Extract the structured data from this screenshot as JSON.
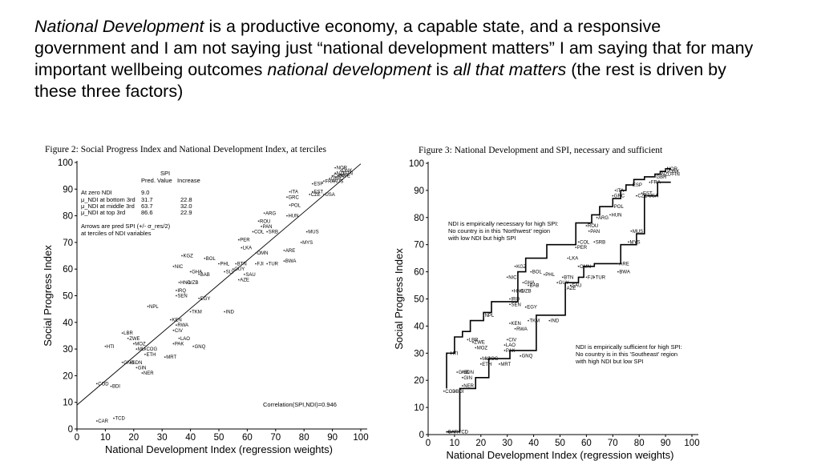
{
  "heading": {
    "t1": "National Development",
    "t2": " is a productive economy, a capable state, and a responsive government and I am not saying just “national development matters” I am saying that for many important wellbeing outcomes ",
    "t3": "national development",
    "t4": " is ",
    "t5": "all that matters",
    "t6": " (the rest is driven by these three factors)"
  },
  "chart_data": [
    {
      "type": "scatter",
      "title": "Figure 2: Social Progress Index and National Development Index, at terciles",
      "xlabel": "National Development Index (regression weights)",
      "ylabel": "Social Progress Index",
      "xlim": [
        0,
        100
      ],
      "ylim": [
        0,
        100
      ],
      "xticks": [
        "0",
        "10",
        "20",
        "30",
        "40",
        "50",
        "60",
        "70",
        "80",
        "90",
        "100"
      ],
      "yticks": [
        "0",
        "10",
        "20",
        "30",
        "40",
        "50",
        "60",
        "70",
        "80",
        "90",
        "100"
      ],
      "table": {
        "col_head1": "SPI",
        "col_head2": "Pred. Value",
        "col_head3": "Increase",
        "rows": [
          {
            "label": "At zero NDI",
            "pred": "9.0",
            "inc": ""
          },
          {
            "label": "μ_NDI at bottom 3rd",
            "pred": "31.7",
            "inc": "22.8"
          },
          {
            "label": "μ_NDI at middle 3rd",
            "pred": "63.7",
            "inc": "32.0"
          },
          {
            "label": "μ_NDI at top 3rd",
            "pred": "86.6",
            "inc": "22.9"
          }
        ]
      },
      "arrow_note_1": "Arrows are pred SPI (+/- σ_res/2)",
      "arrow_note_2": "at terciles of NDI variables",
      "correlation": "Correlation(SPI,NDI)=0.946",
      "fit_line": {
        "x": [
          0,
          100
        ],
        "y": [
          9.0,
          99.5
        ]
      },
      "points": [
        {
          "label": "CAR",
          "x": 7,
          "y": 3
        },
        {
          "label": "TCD",
          "x": 13,
          "y": 4
        },
        {
          "label": "COD",
          "x": 7,
          "y": 17
        },
        {
          "label": "BDI",
          "x": 12,
          "y": 16
        },
        {
          "label": "NER",
          "x": 23,
          "y": 21
        },
        {
          "label": "GIN",
          "x": 21,
          "y": 23
        },
        {
          "label": "GNB",
          "x": 16,
          "y": 25
        },
        {
          "label": "SDN",
          "x": 19,
          "y": 25
        },
        {
          "label": "HTI",
          "x": 10,
          "y": 31
        },
        {
          "label": "LBR",
          "x": 16,
          "y": 36
        },
        {
          "label": "ZWE",
          "x": 18,
          "y": 34
        },
        {
          "label": "MOZ",
          "x": 20,
          "y": 32
        },
        {
          "label": "MLI",
          "x": 21,
          "y": 30
        },
        {
          "label": "COG",
          "x": 24,
          "y": 30
        },
        {
          "label": "ETH",
          "x": 24,
          "y": 28
        },
        {
          "label": "MRT",
          "x": 31,
          "y": 27
        },
        {
          "label": "CIV",
          "x": 34,
          "y": 37
        },
        {
          "label": "RWA",
          "x": 35,
          "y": 39
        },
        {
          "label": "LAO",
          "x": 36,
          "y": 34
        },
        {
          "label": "PAK",
          "x": 34,
          "y": 32
        },
        {
          "label": "GNQ",
          "x": 41,
          "y": 31
        },
        {
          "label": "NPL",
          "x": 25,
          "y": 46
        },
        {
          "label": "KEN",
          "x": 33,
          "y": 41
        },
        {
          "label": "TKM",
          "x": 40,
          "y": 44
        },
        {
          "label": "IND",
          "x": 52,
          "y": 44
        },
        {
          "label": "EGY",
          "x": 43,
          "y": 49
        },
        {
          "label": "SEN",
          "x": 35,
          "y": 50
        },
        {
          "label": "IRQ",
          "x": 35,
          "y": 52
        },
        {
          "label": "HND",
          "x": 36,
          "y": 55
        },
        {
          "label": "UZB",
          "x": 39,
          "y": 55
        },
        {
          "label": "GHA",
          "x": 40,
          "y": 59
        },
        {
          "label": "BAB",
          "x": 43,
          "y": 58
        },
        {
          "label": "NIC",
          "x": 34,
          "y": 61
        },
        {
          "label": "KGZ",
          "x": 37,
          "y": 65
        },
        {
          "label": "BOL",
          "x": 45,
          "y": 64
        },
        {
          "label": "PHL",
          "x": 50,
          "y": 62
        },
        {
          "label": "BTN",
          "x": 56,
          "y": 62
        },
        {
          "label": "GUY",
          "x": 55,
          "y": 60
        },
        {
          "label": "SLV",
          "x": 52,
          "y": 59
        },
        {
          "label": "SAU",
          "x": 59,
          "y": 58
        },
        {
          "label": "AZE",
          "x": 57,
          "y": 56
        },
        {
          "label": "FJI",
          "x": 63,
          "y": 62
        },
        {
          "label": "TUR",
          "x": 67,
          "y": 62
        },
        {
          "label": "BWA",
          "x": 73,
          "y": 63
        },
        {
          "label": "ARE",
          "x": 73,
          "y": 67
        },
        {
          "label": "OMN",
          "x": 63,
          "y": 66
        },
        {
          "label": "LKA",
          "x": 58,
          "y": 68
        },
        {
          "label": "PER",
          "x": 57,
          "y": 71
        },
        {
          "label": "COL",
          "x": 62,
          "y": 74
        },
        {
          "label": "SRB",
          "x": 67,
          "y": 74
        },
        {
          "label": "PAN",
          "x": 65,
          "y": 76
        },
        {
          "label": "ROU",
          "x": 64,
          "y": 78
        },
        {
          "label": "ARG",
          "x": 66,
          "y": 81
        },
        {
          "label": "MYS",
          "x": 79,
          "y": 70
        },
        {
          "label": "MUS",
          "x": 81,
          "y": 74
        },
        {
          "label": "HUN",
          "x": 74,
          "y": 80
        },
        {
          "label": "POL",
          "x": 75,
          "y": 84
        },
        {
          "label": "GRC",
          "x": 74,
          "y": 87
        },
        {
          "label": "ITA",
          "x": 75,
          "y": 89
        },
        {
          "label": "CZE",
          "x": 82,
          "y": 88
        },
        {
          "label": "EST",
          "x": 83,
          "y": 89
        },
        {
          "label": "USA",
          "x": 87,
          "y": 88
        },
        {
          "label": "ESP",
          "x": 83,
          "y": 92
        },
        {
          "label": "FRA",
          "x": 87,
          "y": 93
        },
        {
          "label": "GBR",
          "x": 89,
          "y": 94
        },
        {
          "label": "NZL",
          "x": 91,
          "y": 96
        },
        {
          "label": "NOR",
          "x": 91,
          "y": 98
        },
        {
          "label": "DNK",
          "x": 93,
          "y": 97
        },
        {
          "label": "FIN",
          "x": 94,
          "y": 96
        },
        {
          "label": "SWE",
          "x": 92,
          "y": 95
        },
        {
          "label": "CAN",
          "x": 90,
          "y": 95
        },
        {
          "label": "AUS",
          "x": 90,
          "y": 93
        }
      ]
    },
    {
      "type": "line",
      "title": "Figure 3: National Development and SPI, necessary and sufficient",
      "xlabel": "National Development Index (regression weights)",
      "ylabel": "Social Progress Index",
      "xlim": [
        0,
        100
      ],
      "ylim": [
        0,
        100
      ],
      "xticks": [
        "0",
        "10",
        "20",
        "30",
        "40",
        "50",
        "60",
        "70",
        "80",
        "90",
        "100"
      ],
      "yticks": [
        "0",
        "10",
        "20",
        "30",
        "40",
        "50",
        "60",
        "70",
        "80",
        "90",
        "100"
      ],
      "note_necessary": [
        "NDI is empirically necessary for high SPI:",
        "No country is in this 'Northwest' region",
        "with low NDI but high SPI"
      ],
      "note_sufficient": [
        "NDI is empirically sufficient for high SPI:",
        "No country is in this 'Southeast' region",
        "with high NDI but low SPI"
      ],
      "upper_envelope": {
        "x": [
          7,
          7,
          10,
          10,
          13,
          13,
          16,
          16,
          21,
          21,
          24,
          24,
          34,
          34,
          37,
          37,
          45,
          45,
          56,
          56,
          62,
          62,
          65,
          65,
          70,
          70,
          73,
          73,
          75,
          75,
          78,
          78,
          82,
          82,
          86,
          86,
          88,
          88,
          90,
          90,
          92
        ],
        "y": [
          17,
          30,
          30,
          36,
          36,
          38,
          38,
          42,
          42,
          45,
          45,
          49,
          49,
          60,
          60,
          65,
          65,
          70,
          70,
          78,
          78,
          81,
          81,
          84,
          84,
          87,
          87,
          90,
          90,
          92,
          92,
          94,
          94,
          95,
          95,
          96,
          96,
          97,
          97,
          98,
          98
        ]
      },
      "lower_envelope": {
        "x": [
          7,
          12,
          12,
          18,
          18,
          23,
          23,
          31,
          31,
          41,
          41,
          52,
          52,
          57,
          57,
          59,
          59,
          63,
          63,
          73,
          73,
          79,
          79,
          82,
          82,
          87,
          87,
          92
        ],
        "y": [
          1,
          1,
          17,
          17,
          21,
          21,
          28,
          28,
          31,
          31,
          44,
          44,
          56,
          56,
          58,
          58,
          62,
          62,
          63,
          63,
          70,
          70,
          74,
          74,
          88,
          88,
          93,
          93
        ]
      },
      "points": [
        {
          "label": "CAR",
          "x": 7,
          "y": 1
        },
        {
          "label": "TCD",
          "x": 11,
          "y": 1
        },
        {
          "label": "COD",
          "x": 6,
          "y": 16
        },
        {
          "label": "BDI",
          "x": 10,
          "y": 16
        },
        {
          "label": "NER",
          "x": 13,
          "y": 18
        },
        {
          "label": "GIN",
          "x": 13,
          "y": 21
        },
        {
          "label": "GNB",
          "x": 11,
          "y": 23
        },
        {
          "label": "SDN",
          "x": 13,
          "y": 23
        },
        {
          "label": "HTI",
          "x": 8,
          "y": 30
        },
        {
          "label": "LBR",
          "x": 15,
          "y": 35
        },
        {
          "label": "ZWE",
          "x": 17,
          "y": 34
        },
        {
          "label": "MOZ",
          "x": 18,
          "y": 32
        },
        {
          "label": "MLI",
          "x": 20,
          "y": 28
        },
        {
          "label": "COG",
          "x": 22,
          "y": 28
        },
        {
          "label": "ETH",
          "x": 20,
          "y": 26
        },
        {
          "label": "MRT",
          "x": 27,
          "y": 26
        },
        {
          "label": "CIV",
          "x": 30,
          "y": 35
        },
        {
          "label": "RWA",
          "x": 33,
          "y": 39
        },
        {
          "label": "LAO",
          "x": 29,
          "y": 33
        },
        {
          "label": "PAK",
          "x": 29,
          "y": 31
        },
        {
          "label": "GNQ",
          "x": 35,
          "y": 29
        },
        {
          "label": "NPL",
          "x": 21,
          "y": 44
        },
        {
          "label": "KEN",
          "x": 31,
          "y": 41
        },
        {
          "label": "TKM",
          "x": 38,
          "y": 42
        },
        {
          "label": "IND",
          "x": 46,
          "y": 42
        },
        {
          "label": "EGY",
          "x": 37,
          "y": 47
        },
        {
          "label": "SEN",
          "x": 31,
          "y": 48
        },
        {
          "label": "IRQ",
          "x": 31,
          "y": 50
        },
        {
          "label": "HND",
          "x": 32,
          "y": 53
        },
        {
          "label": "UZB",
          "x": 35,
          "y": 53
        },
        {
          "label": "GHA",
          "x": 36,
          "y": 56
        },
        {
          "label": "BAB",
          "x": 38,
          "y": 55
        },
        {
          "label": "NIC",
          "x": 30,
          "y": 58
        },
        {
          "label": "KGZ",
          "x": 33,
          "y": 62
        },
        {
          "label": "BOL",
          "x": 39,
          "y": 60
        },
        {
          "label": "PHL",
          "x": 44,
          "y": 59
        },
        {
          "label": "BTN",
          "x": 51,
          "y": 58
        },
        {
          "label": "GUY",
          "x": 49,
          "y": 56
        },
        {
          "label": "SAU",
          "x": 54,
          "y": 55
        },
        {
          "label": "AZE",
          "x": 52,
          "y": 54
        },
        {
          "label": "FJI",
          "x": 60,
          "y": 58
        },
        {
          "label": "TUR",
          "x": 63,
          "y": 58
        },
        {
          "label": "BWA",
          "x": 72,
          "y": 60
        },
        {
          "label": "ARE",
          "x": 72,
          "y": 63
        },
        {
          "label": "OMN",
          "x": 57,
          "y": 62
        },
        {
          "label": "LKA",
          "x": 53,
          "y": 65
        },
        {
          "label": "PER",
          "x": 56,
          "y": 69
        },
        {
          "label": "COL",
          "x": 57,
          "y": 71
        },
        {
          "label": "SRB",
          "x": 63,
          "y": 71
        },
        {
          "label": "PAN",
          "x": 61,
          "y": 75
        },
        {
          "label": "ROU",
          "x": 60,
          "y": 77
        },
        {
          "label": "ARG",
          "x": 64,
          "y": 80
        },
        {
          "label": "MYS",
          "x": 76,
          "y": 71
        },
        {
          "label": "MUS",
          "x": 77,
          "y": 75
        },
        {
          "label": "HUN",
          "x": 69,
          "y": 81
        },
        {
          "label": "POL",
          "x": 70,
          "y": 84
        },
        {
          "label": "GRC",
          "x": 70,
          "y": 88
        },
        {
          "label": "ITA",
          "x": 71,
          "y": 90
        },
        {
          "label": "CZE",
          "x": 79,
          "y": 88
        },
        {
          "label": "EST",
          "x": 81,
          "y": 89
        },
        {
          "label": "USA",
          "x": 83,
          "y": 88
        },
        {
          "label": "ESP",
          "x": 77,
          "y": 92
        },
        {
          "label": "FRA",
          "x": 84,
          "y": 93
        },
        {
          "label": "GBR",
          "x": 86,
          "y": 95
        },
        {
          "label": "NOR",
          "x": 90,
          "y": 98
        },
        {
          "label": "DNK",
          "x": 91,
          "y": 97
        },
        {
          "label": "FIN",
          "x": 92,
          "y": 96
        },
        {
          "label": "NZL",
          "x": 88,
          "y": 96
        }
      ]
    }
  ]
}
